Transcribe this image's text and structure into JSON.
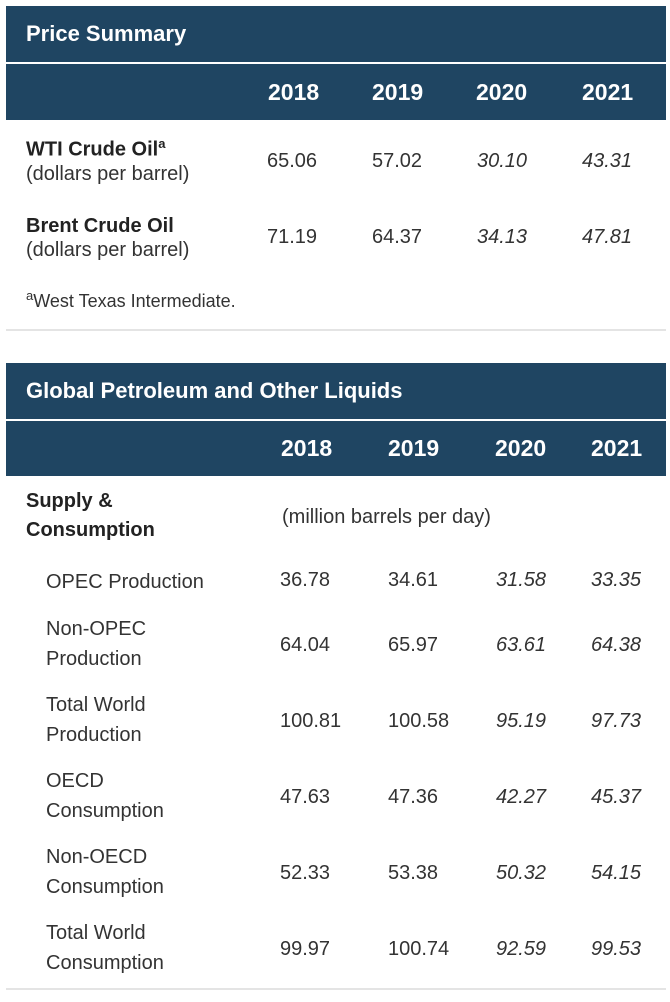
{
  "price_summary": {
    "title": "Price Summary",
    "years": [
      "2018",
      "2019",
      "2020",
      "2021"
    ],
    "rows": [
      {
        "label": "WTI Crude Oil",
        "sup": "a",
        "unit": "(dollars per barrel)",
        "values": [
          "65.06",
          "57.02",
          "30.10",
          "43.31"
        ]
      },
      {
        "label": "Brent Crude Oil",
        "sup": "",
        "unit": "(dollars per barrel)",
        "values": [
          "71.19",
          "64.37",
          "34.13",
          "47.81"
        ]
      }
    ],
    "footnote_sup": "a",
    "footnote": "West Texas Intermediate."
  },
  "global_liquids": {
    "title": "Global Petroleum and Other Liquids",
    "years": [
      "2018",
      "2019",
      "2020",
      "2021"
    ],
    "section_label_1": "Supply &",
    "section_label_2": "Consumption",
    "unit": "(million barrels per day)",
    "rows": [
      {
        "label_1": "OPEC Production",
        "label_2": "",
        "values": [
          "36.78",
          "34.61",
          "31.58",
          "33.35"
        ]
      },
      {
        "label_1": "Non-OPEC",
        "label_2": "Production",
        "values": [
          "64.04",
          "65.97",
          "63.61",
          "64.38"
        ]
      },
      {
        "label_1": "Total World",
        "label_2": "Production",
        "values": [
          "100.81",
          "100.58",
          "95.19",
          "97.73"
        ]
      },
      {
        "label_1": "OECD",
        "label_2": "Consumption",
        "values": [
          "47.63",
          "47.36",
          "42.27",
          "45.37"
        ]
      },
      {
        "label_1": "Non-OECD",
        "label_2": "Consumption",
        "values": [
          "52.33",
          "53.38",
          "50.32",
          "54.15"
        ]
      },
      {
        "label_1": "Total World",
        "label_2": "Consumption",
        "values": [
          "99.97",
          "100.74",
          "92.59",
          "99.53"
        ]
      }
    ]
  }
}
